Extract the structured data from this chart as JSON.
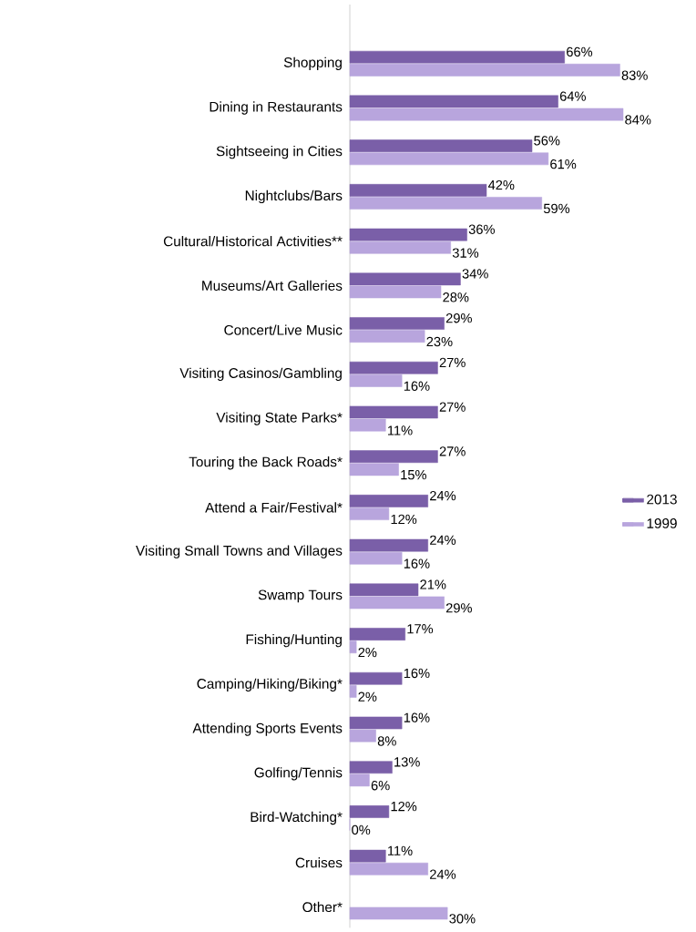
{
  "chart_data": {
    "type": "bar",
    "orientation": "horizontal",
    "data_labels": true,
    "legend": "right",
    "categories": [
      "Shopping",
      "Dining in Restaurants",
      "Sightseeing in Cities",
      "Nightclubs/Bars",
      "Cultural/Historical Activities**",
      "Museums/Art Galleries",
      "Concert/Live Music",
      "Visiting Casinos/Gambling",
      "Visiting State Parks*",
      "Touring the Back Roads*",
      "Attend a Fair/Festival*",
      "Visiting Small Towns and Villages",
      "Swamp Tours",
      "Fishing/Hunting",
      "Camping/Hiking/Biking*",
      "Attending Sports Events",
      "Golfing/Tennis",
      "Bird-Watching*",
      "Cruises",
      "Other*"
    ],
    "series": [
      {
        "name": "2013",
        "color": "#7a5fa8",
        "values": [
          66,
          64,
          56,
          42,
          36,
          34,
          29,
          27,
          27,
          27,
          24,
          24,
          21,
          17,
          16,
          16,
          13,
          12,
          11,
          null
        ],
        "value_labels": [
          "66%",
          "64%",
          "56%",
          "42%",
          "36%",
          "34%",
          "29%",
          "27%",
          "27%",
          "27%",
          "24%",
          "24%",
          "21%",
          "17%",
          "16%",
          "16%",
          "13%",
          "12%",
          "11%",
          null
        ]
      },
      {
        "name": "1999",
        "color": "#b8a5dd",
        "values": [
          83,
          84,
          61,
          59,
          31,
          28,
          23,
          16,
          11,
          15,
          12,
          16,
          29,
          2,
          2,
          8,
          6,
          0,
          24,
          30
        ],
        "value_labels": [
          "83%",
          "84%",
          "61%",
          "59%",
          "31%",
          "28%",
          "23%",
          "16%",
          "11%",
          "15%",
          "12%",
          "16%",
          "29%",
          "2%",
          "2%",
          "8%",
          "6%",
          "0%",
          "24%",
          "30%"
        ]
      }
    ]
  }
}
